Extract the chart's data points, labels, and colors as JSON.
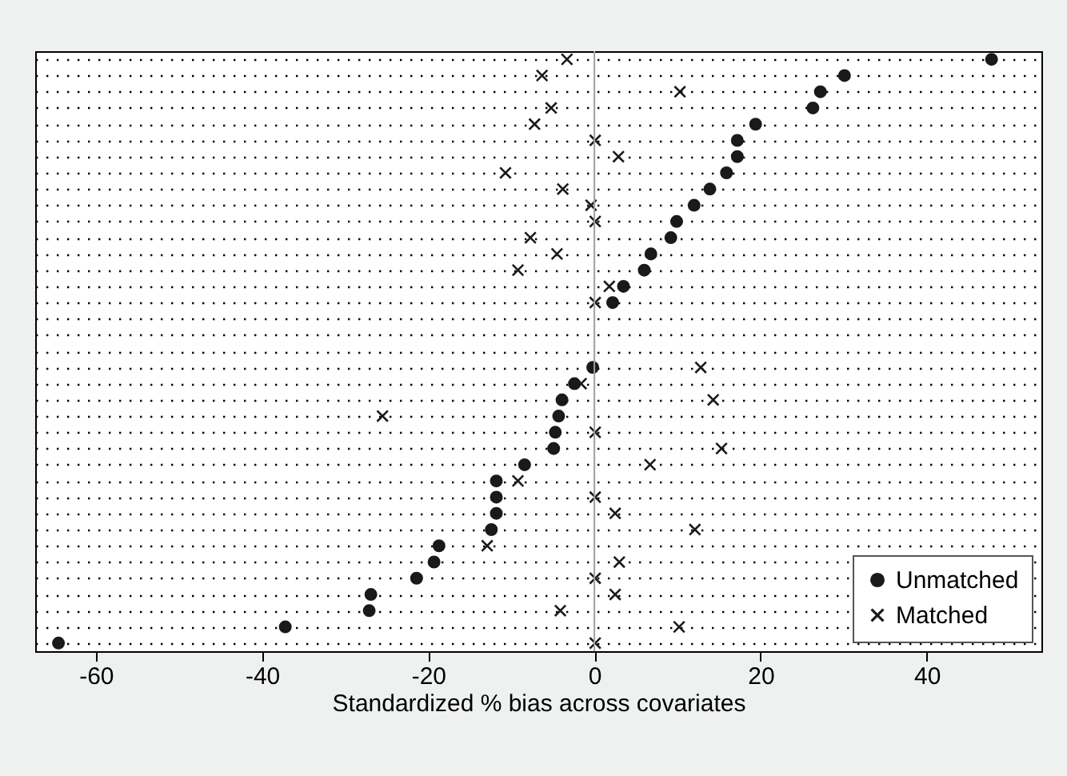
{
  "chart_data": {
    "type": "scatter",
    "xlabel": "Standardized % bias across covariates",
    "categories": [
      null,
      null,
      null,
      null,
      null,
      null,
      null,
      null,
      null,
      null,
      null,
      null,
      null,
      null,
      null,
      null,
      null,
      null,
      null,
      null,
      null,
      null,
      null,
      null,
      null,
      null,
      null,
      null,
      null,
      null,
      null,
      null,
      null,
      null,
      null,
      null,
      null
    ],
    "series": [
      {
        "name": "Unmatched",
        "color": "#1a1a1a",
        "marker": "circle",
        "values": [
          47.8,
          30.1,
          27.2,
          26.3,
          19.4,
          17.2,
          17.2,
          15.9,
          13.9,
          12.0,
          9.9,
          9.2,
          6.8,
          6.0,
          3.5,
          2.2,
          null,
          null,
          null,
          -0.2,
          -2.4,
          -3.9,
          -4.3,
          -4.7,
          -4.9,
          -8.4,
          -11.8,
          -11.8,
          -11.8,
          -12.4,
          -18.7,
          -19.3,
          -21.4,
          -26.9,
          -27.1,
          -37.2,
          -64.5
        ]
      },
      {
        "name": "Matched",
        "color": "#1a1a1a",
        "marker": "cross",
        "values": [
          -3.3,
          -6.3,
          10.3,
          -5.2,
          -7.2,
          0.1,
          2.9,
          -10.7,
          -3.8,
          -0.4,
          0.1,
          -7.7,
          -4.5,
          -9.2,
          1.8,
          0.1,
          null,
          null,
          null,
          12.8,
          -1.6,
          14.3,
          -25.5,
          0.1,
          15.3,
          6.7,
          -9.2,
          0.1,
          2.5,
          12.1,
          -12.9,
          3.0,
          0.1,
          2.5,
          -4.1,
          10.2,
          0.1
        ]
      }
    ],
    "xlim": [
      -67.3,
      53.8
    ],
    "xticks": [
      -60,
      -40,
      -20,
      0,
      20,
      40
    ],
    "ref_lines": [
      {
        "axis": "x",
        "value": 0,
        "color": "#a0a0a0"
      }
    ],
    "orientation": "horizontal",
    "grid": "y",
    "legend": "bottom right",
    "tick_labels": "x"
  }
}
